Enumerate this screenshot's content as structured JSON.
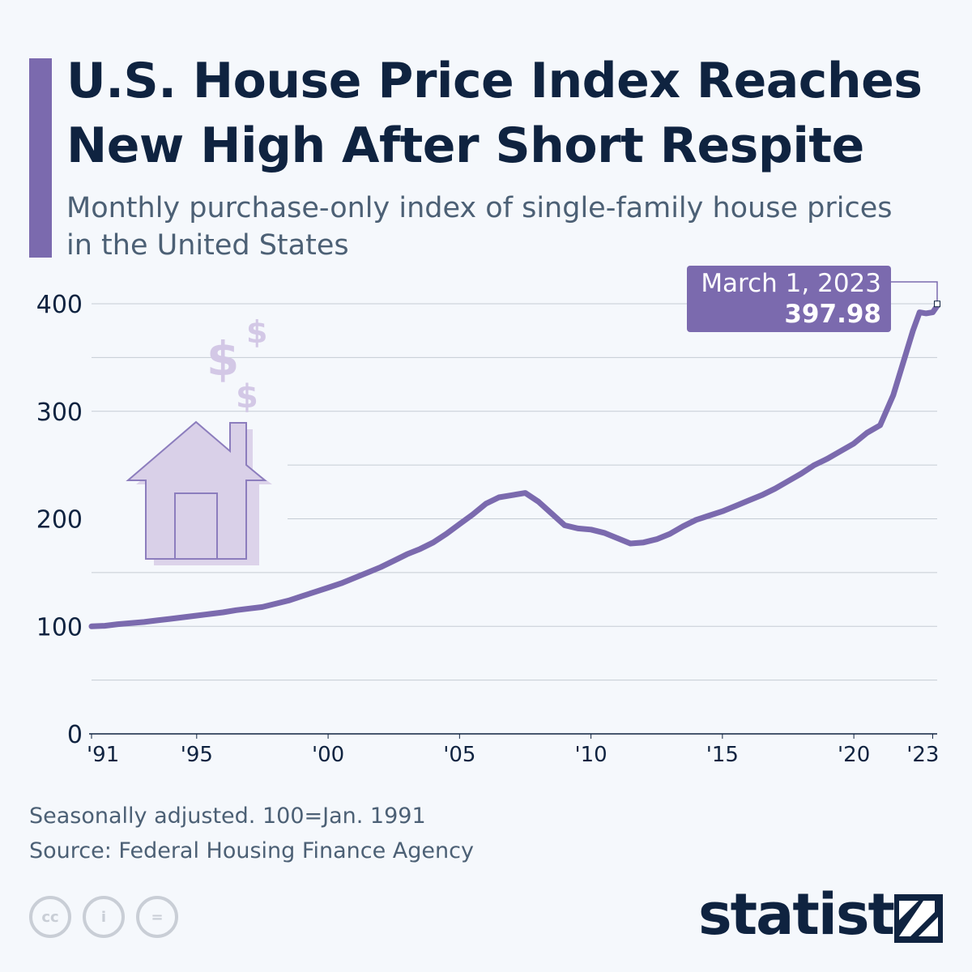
{
  "header": {
    "title_line1": "U.S. House Price Index Reaches",
    "title_line2": "New High After Short Respite",
    "subtitle_line1": "Monthly purchase-only index of single-family house prices",
    "subtitle_line2": "in the United States"
  },
  "colors": {
    "accent": "#7b6aae",
    "line": "#7b6aae",
    "illustration": "#d9d0e8",
    "illustration_stroke": "#8c7dbd",
    "text_dark": "#0f2340",
    "text_muted": "#4c6075",
    "grid": "#c5ccd4"
  },
  "chart_data": {
    "type": "line",
    "title": "U.S. House Price Index Reaches New High After Short Respite",
    "xlabel": "",
    "ylabel": "",
    "xlim": [
      1991.0,
      2023.17
    ],
    "ylim": [
      0,
      400
    ],
    "yticks": [
      0,
      100,
      200,
      300,
      400
    ],
    "ytick_labels": [
      "0",
      "100",
      "200",
      "300",
      "400"
    ],
    "xticks": [
      1991,
      1995,
      2000,
      2005,
      2010,
      2015,
      2020,
      2023
    ],
    "xtick_labels": [
      "'91",
      "'95",
      "'00",
      "'05",
      "'10",
      "'15",
      "'20",
      "'23"
    ],
    "grid": true,
    "series": [
      {
        "name": "House Price Index",
        "x": [
          1991.0,
          1991.5,
          1992.0,
          1992.5,
          1993.0,
          1993.5,
          1994.0,
          1994.5,
          1995.0,
          1995.5,
          1996.0,
          1996.5,
          1997.0,
          1997.5,
          1998.0,
          1998.5,
          1999.0,
          1999.5,
          2000.0,
          2000.5,
          2001.0,
          2001.5,
          2002.0,
          2002.5,
          2003.0,
          2003.5,
          2004.0,
          2004.5,
          2005.0,
          2005.5,
          2006.0,
          2006.5,
          2007.0,
          2007.5,
          2008.0,
          2008.5,
          2009.0,
          2009.5,
          2010.0,
          2010.5,
          2011.0,
          2011.5,
          2012.0,
          2012.5,
          2013.0,
          2013.5,
          2014.0,
          2014.5,
          2015.0,
          2015.5,
          2016.0,
          2016.5,
          2017.0,
          2017.5,
          2018.0,
          2018.5,
          2019.0,
          2019.5,
          2020.0,
          2020.5,
          2021.0,
          2021.5,
          2022.0,
          2022.25,
          2022.5,
          2022.75,
          2023.0,
          2023.17
        ],
        "values": [
          100,
          100.5,
          102,
          103,
          104,
          105.5,
          107,
          108.5,
          110,
          111.5,
          113,
          115,
          116.5,
          118,
          121,
          124,
          128,
          132,
          136,
          140,
          145,
          150,
          155,
          161,
          167,
          172,
          178,
          186,
          195,
          204,
          214,
          220,
          222,
          224,
          216,
          205,
          194,
          191,
          190,
          187,
          182,
          177,
          178,
          181,
          186,
          193,
          199,
          203,
          207,
          212,
          217,
          222,
          228,
          235,
          242,
          250,
          256,
          263,
          270,
          280,
          287,
          315,
          355,
          375,
          392,
          391,
          392,
          397.98
        ]
      }
    ],
    "annotation": {
      "date": "March 1, 2023",
      "value": "397.98"
    }
  },
  "footer": {
    "note": "Seasonally adjusted. 100=Jan. 1991",
    "source": "Source: Federal Housing Finance Agency",
    "cc_icons": [
      "cc-icon",
      "attribution-icon",
      "no-derivatives-icon"
    ],
    "cc_labels": [
      "cc",
      "i",
      "="
    ],
    "brand": "statista"
  }
}
